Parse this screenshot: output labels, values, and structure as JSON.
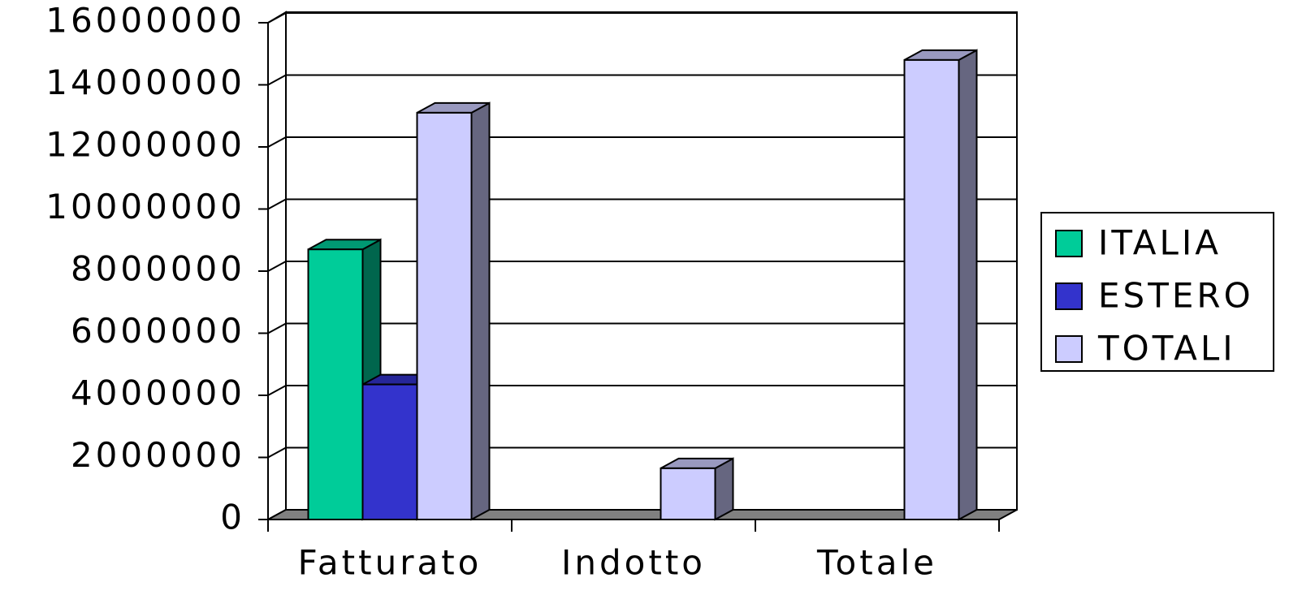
{
  "chart_data": {
    "type": "bar3d",
    "categories": [
      "Fatturato",
      "Indotto",
      "Totale"
    ],
    "series": [
      {
        "name": "ITALIA",
        "color": "#00cc99",
        "values": [
          8700000,
          0,
          0
        ]
      },
      {
        "name": "ESTERO",
        "color": "#3333cc",
        "values": [
          4350000,
          0,
          0
        ]
      },
      {
        "name": "TOTALI",
        "color": "#ccccff",
        "values": [
          13100000,
          1650000,
          14800000
        ]
      }
    ],
    "ylim": [
      0,
      16000000
    ],
    "yticks": [
      0,
      2000000,
      4000000,
      6000000,
      8000000,
      10000000,
      12000000,
      14000000,
      16000000
    ],
    "grid": true,
    "legend": "right"
  }
}
